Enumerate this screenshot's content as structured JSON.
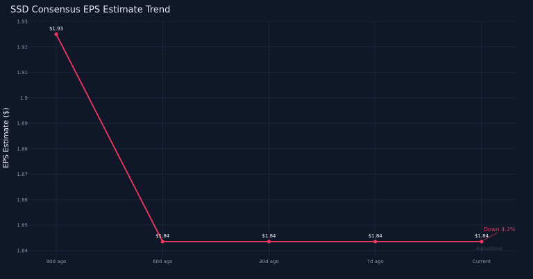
{
  "title": "SSD Consensus EPS Estimate Trend",
  "colors": {
    "background": "#0f1729",
    "line": "#f0395e",
    "grid": "#1f2a3d",
    "tick": "#8a94a6",
    "annotation": "#f0395e"
  },
  "chart_data": {
    "type": "line",
    "title": "SSD Consensus EPS Estimate Trend",
    "xlabel": "",
    "ylabel": "EPS Estimate ($)",
    "categories": [
      "90d ago",
      "60d ago",
      "30d ago",
      "7d ago",
      "Current"
    ],
    "series": [
      {
        "values": [
          1.925,
          1.8435,
          1.8435,
          1.8435,
          1.8435
        ],
        "data_labels": [
          "$1.93",
          "$1.84",
          "$1.84",
          "$1.84",
          "$1.84"
        ]
      }
    ],
    "ylim": [
      1.8375,
      1.93
    ],
    "yticks": [
      1.84,
      1.85,
      1.86,
      1.87,
      1.88,
      1.89,
      1.9,
      1.91,
      1.92,
      1.93
    ],
    "ytick_labels": [
      "1.84",
      "1.85",
      "1.86",
      "1.87",
      "1.88",
      "1.89",
      "1.9",
      "1.91",
      "1.92",
      "1.93"
    ],
    "grid": true,
    "annotation": "Down 4.2%",
    "watermark": "AlphaStreet"
  }
}
